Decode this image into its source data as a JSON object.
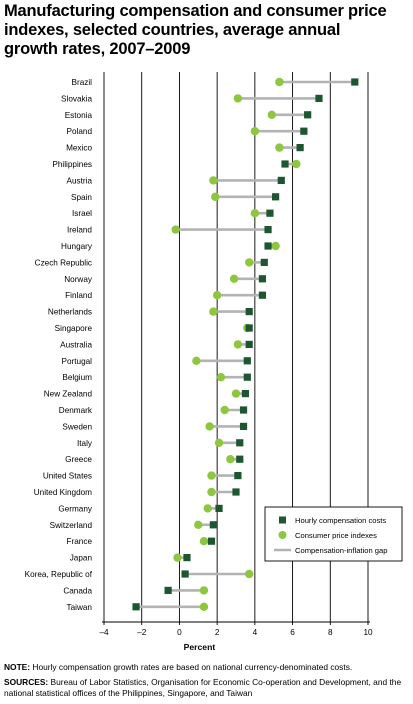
{
  "title_lines": [
    "Manufacturing compensation and consumer price",
    "indexes, selected countries, average annual",
    "growth rates, 2007–2009"
  ],
  "notes": {
    "note_label": "NOTE:",
    "note_text": "Hourly compensation growth rates are based on national currency-denominated costs.",
    "sources_label": "SOURCES:",
    "sources_text": "Bureau of Labor Statistics, Organisation for Economic Co-operation and Development, and the national statistical offices of the Philippines, Singapore, and Taiwan"
  },
  "colors": {
    "compensation_marker": "#1e5631",
    "cpi_marker": "#8dc63f",
    "gap_line": "#b3b3b3",
    "gridline": "#000000"
  },
  "chart_data": {
    "type": "dot",
    "xlabel": "Percent",
    "xlim": [
      -4,
      10
    ],
    "xticks": [
      -4,
      -2,
      0,
      2,
      4,
      6,
      8,
      10
    ],
    "grid": true,
    "legend_position": "bottom-right",
    "legend": [
      {
        "label": "Hourly compensation costs",
        "marker": "square"
      },
      {
        "label": "Consumer price indexes",
        "marker": "circle"
      },
      {
        "label": "Compensation-inflation gap",
        "marker": "line"
      }
    ],
    "categories": [
      "Brazil",
      "Slovakia",
      "Estonia",
      "Poland",
      "Mexico",
      "Philippines",
      "Austria",
      "Spain",
      "Israel",
      "Ireland",
      "Hungary",
      "Czech Republic",
      "Norway",
      "Finland",
      "Netherlands",
      "Singapore",
      "Australia",
      "Portugal",
      "Belgium",
      "New Zealand",
      "Denmark",
      "Sweden",
      "Italy",
      "Greece",
      "United States",
      "United Kingdom",
      "Germany",
      "Switzerland",
      "France",
      "Japan",
      "Korea, Republic of",
      "Canada",
      "Taiwan"
    ],
    "series": [
      {
        "name": "Hourly compensation costs",
        "values": [
          9.3,
          7.4,
          6.8,
          6.6,
          6.4,
          5.6,
          5.4,
          5.1,
          4.8,
          4.7,
          4.7,
          4.5,
          4.4,
          4.4,
          3.7,
          3.7,
          3.7,
          3.6,
          3.6,
          3.5,
          3.4,
          3.4,
          3.2,
          3.2,
          3.1,
          3.0,
          2.1,
          1.8,
          1.7,
          0.4,
          0.3,
          -0.6,
          -2.3
        ]
      },
      {
        "name": "Consumer price indexes",
        "values": [
          5.3,
          3.1,
          4.9,
          4.0,
          5.3,
          6.2,
          1.8,
          1.9,
          4.0,
          -0.2,
          5.1,
          3.7,
          2.9,
          2.0,
          1.8,
          3.6,
          3.1,
          0.9,
          2.2,
          3.0,
          2.4,
          1.6,
          2.1,
          2.7,
          1.7,
          1.7,
          1.5,
          1.0,
          1.3,
          -0.1,
          3.7,
          1.3,
          1.3
        ]
      }
    ]
  }
}
